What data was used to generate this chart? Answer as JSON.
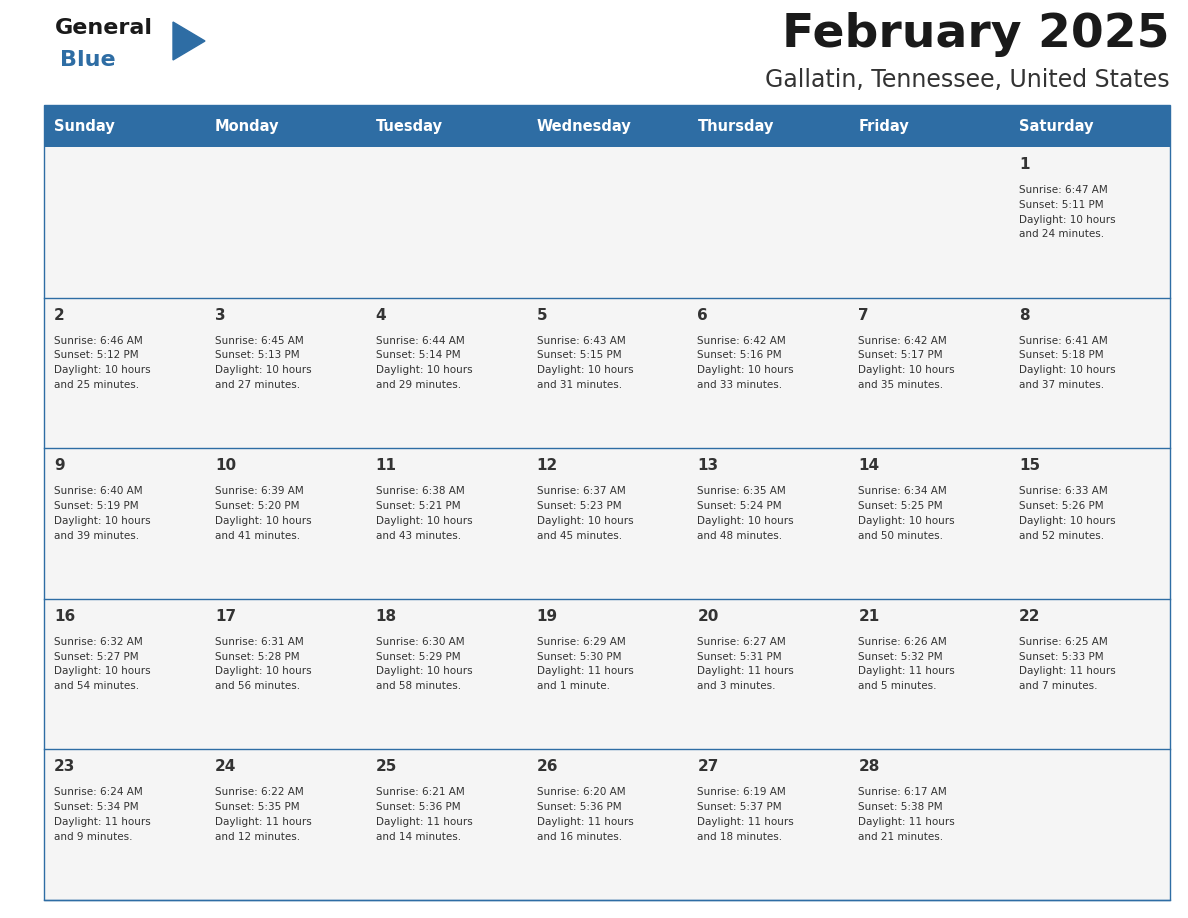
{
  "title": "February 2025",
  "subtitle": "Gallatin, Tennessee, United States",
  "days_of_week": [
    "Sunday",
    "Monday",
    "Tuesday",
    "Wednesday",
    "Thursday",
    "Friday",
    "Saturday"
  ],
  "header_bg": "#2e6da4",
  "header_text": "#ffffff",
  "cell_bg": "#f5f5f5",
  "row_line_color": "#2e6da4",
  "text_color": "#333333",
  "title_color": "#1a1a1a",
  "subtitle_color": "#333333",
  "logo_general_color": "#1a1a1a",
  "logo_blue_color": "#2e6da4",
  "weeks": [
    [
      {
        "day": null,
        "info": null
      },
      {
        "day": null,
        "info": null
      },
      {
        "day": null,
        "info": null
      },
      {
        "day": null,
        "info": null
      },
      {
        "day": null,
        "info": null
      },
      {
        "day": null,
        "info": null
      },
      {
        "day": 1,
        "info": "Sunrise: 6:47 AM\nSunset: 5:11 PM\nDaylight: 10 hours\nand 24 minutes."
      }
    ],
    [
      {
        "day": 2,
        "info": "Sunrise: 6:46 AM\nSunset: 5:12 PM\nDaylight: 10 hours\nand 25 minutes."
      },
      {
        "day": 3,
        "info": "Sunrise: 6:45 AM\nSunset: 5:13 PM\nDaylight: 10 hours\nand 27 minutes."
      },
      {
        "day": 4,
        "info": "Sunrise: 6:44 AM\nSunset: 5:14 PM\nDaylight: 10 hours\nand 29 minutes."
      },
      {
        "day": 5,
        "info": "Sunrise: 6:43 AM\nSunset: 5:15 PM\nDaylight: 10 hours\nand 31 minutes."
      },
      {
        "day": 6,
        "info": "Sunrise: 6:42 AM\nSunset: 5:16 PM\nDaylight: 10 hours\nand 33 minutes."
      },
      {
        "day": 7,
        "info": "Sunrise: 6:42 AM\nSunset: 5:17 PM\nDaylight: 10 hours\nand 35 minutes."
      },
      {
        "day": 8,
        "info": "Sunrise: 6:41 AM\nSunset: 5:18 PM\nDaylight: 10 hours\nand 37 minutes."
      }
    ],
    [
      {
        "day": 9,
        "info": "Sunrise: 6:40 AM\nSunset: 5:19 PM\nDaylight: 10 hours\nand 39 minutes."
      },
      {
        "day": 10,
        "info": "Sunrise: 6:39 AM\nSunset: 5:20 PM\nDaylight: 10 hours\nand 41 minutes."
      },
      {
        "day": 11,
        "info": "Sunrise: 6:38 AM\nSunset: 5:21 PM\nDaylight: 10 hours\nand 43 minutes."
      },
      {
        "day": 12,
        "info": "Sunrise: 6:37 AM\nSunset: 5:23 PM\nDaylight: 10 hours\nand 45 minutes."
      },
      {
        "day": 13,
        "info": "Sunrise: 6:35 AM\nSunset: 5:24 PM\nDaylight: 10 hours\nand 48 minutes."
      },
      {
        "day": 14,
        "info": "Sunrise: 6:34 AM\nSunset: 5:25 PM\nDaylight: 10 hours\nand 50 minutes."
      },
      {
        "day": 15,
        "info": "Sunrise: 6:33 AM\nSunset: 5:26 PM\nDaylight: 10 hours\nand 52 minutes."
      }
    ],
    [
      {
        "day": 16,
        "info": "Sunrise: 6:32 AM\nSunset: 5:27 PM\nDaylight: 10 hours\nand 54 minutes."
      },
      {
        "day": 17,
        "info": "Sunrise: 6:31 AM\nSunset: 5:28 PM\nDaylight: 10 hours\nand 56 minutes."
      },
      {
        "day": 18,
        "info": "Sunrise: 6:30 AM\nSunset: 5:29 PM\nDaylight: 10 hours\nand 58 minutes."
      },
      {
        "day": 19,
        "info": "Sunrise: 6:29 AM\nSunset: 5:30 PM\nDaylight: 11 hours\nand 1 minute."
      },
      {
        "day": 20,
        "info": "Sunrise: 6:27 AM\nSunset: 5:31 PM\nDaylight: 11 hours\nand 3 minutes."
      },
      {
        "day": 21,
        "info": "Sunrise: 6:26 AM\nSunset: 5:32 PM\nDaylight: 11 hours\nand 5 minutes."
      },
      {
        "day": 22,
        "info": "Sunrise: 6:25 AM\nSunset: 5:33 PM\nDaylight: 11 hours\nand 7 minutes."
      }
    ],
    [
      {
        "day": 23,
        "info": "Sunrise: 6:24 AM\nSunset: 5:34 PM\nDaylight: 11 hours\nand 9 minutes."
      },
      {
        "day": 24,
        "info": "Sunrise: 6:22 AM\nSunset: 5:35 PM\nDaylight: 11 hours\nand 12 minutes."
      },
      {
        "day": 25,
        "info": "Sunrise: 6:21 AM\nSunset: 5:36 PM\nDaylight: 11 hours\nand 14 minutes."
      },
      {
        "day": 26,
        "info": "Sunrise: 6:20 AM\nSunset: 5:36 PM\nDaylight: 11 hours\nand 16 minutes."
      },
      {
        "day": 27,
        "info": "Sunrise: 6:19 AM\nSunset: 5:37 PM\nDaylight: 11 hours\nand 18 minutes."
      },
      {
        "day": 28,
        "info": "Sunrise: 6:17 AM\nSunset: 5:38 PM\nDaylight: 11 hours\nand 21 minutes."
      },
      {
        "day": null,
        "info": null
      }
    ]
  ],
  "fig_width": 11.88,
  "fig_height": 9.18,
  "dpi": 100
}
